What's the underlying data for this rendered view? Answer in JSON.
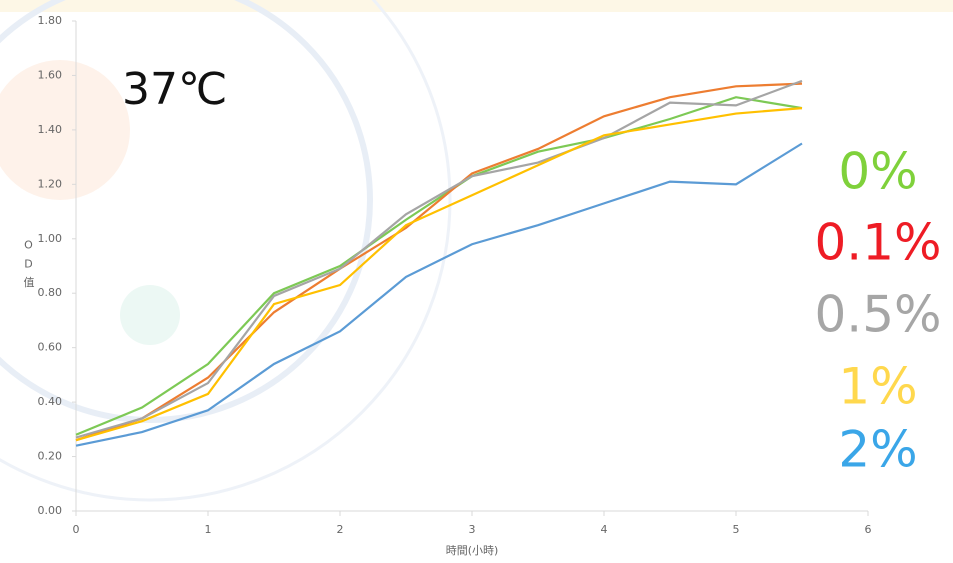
{
  "chart_data": {
    "type": "line",
    "annotation": "37℃",
    "xlabel": "時間(小時)",
    "ylabel": "OD值",
    "x": [
      0,
      0.5,
      1,
      1.5,
      2,
      2.5,
      3,
      3.5,
      4,
      4.5,
      5,
      5.5
    ],
    "xlim": [
      0,
      6
    ],
    "xticks": [
      0,
      1,
      2,
      3,
      4,
      5,
      6
    ],
    "ylim": [
      0,
      1.8
    ],
    "yticks": [
      {
        "value": 0,
        "label": "0.00"
      },
      {
        "value": 0.2,
        "label": "0.20"
      },
      {
        "value": 0.4,
        "label": "0.40"
      },
      {
        "value": 0.6,
        "label": "0.60"
      },
      {
        "value": 0.8,
        "label": "0.80"
      },
      {
        "value": 1.0,
        "label": "1.00"
      },
      {
        "value": 1.2,
        "label": "1.20"
      },
      {
        "value": 1.4,
        "label": "1.40"
      },
      {
        "value": 1.6,
        "label": "1.60"
      },
      {
        "value": 1.8,
        "label": "1.80"
      }
    ],
    "series": [
      {
        "name": "0%",
        "color": "#7dc955",
        "label_color": "#7fd13b",
        "values": [
          0.28,
          0.38,
          0.54,
          0.8,
          0.9,
          1.07,
          1.23,
          1.32,
          1.37,
          1.44,
          1.52,
          1.48
        ]
      },
      {
        "name": "0.1%",
        "color": "#ed7d31",
        "label_color": "#ee1c25",
        "values": [
          0.26,
          0.34,
          0.49,
          0.73,
          0.89,
          1.04,
          1.24,
          1.33,
          1.45,
          1.52,
          1.56,
          1.57
        ]
      },
      {
        "name": "0.5%",
        "color": "#a5a5a5",
        "label_color": "#a6a6a6",
        "values": [
          0.27,
          0.34,
          0.47,
          0.79,
          0.89,
          1.09,
          1.23,
          1.28,
          1.37,
          1.5,
          1.49,
          1.58
        ]
      },
      {
        "name": "1%",
        "color": "#ffc000",
        "label_color": "#ffd84d",
        "values": [
          0.26,
          0.33,
          0.43,
          0.76,
          0.83,
          1.05,
          1.16,
          1.27,
          1.38,
          1.42,
          1.46,
          1.48
        ]
      },
      {
        "name": "2%",
        "color": "#5b9bd5",
        "label_color": "#3aa6e8",
        "values": [
          0.24,
          0.29,
          0.37,
          0.54,
          0.66,
          0.86,
          0.98,
          1.05,
          1.13,
          1.21,
          1.2,
          1.35
        ]
      }
    ]
  }
}
